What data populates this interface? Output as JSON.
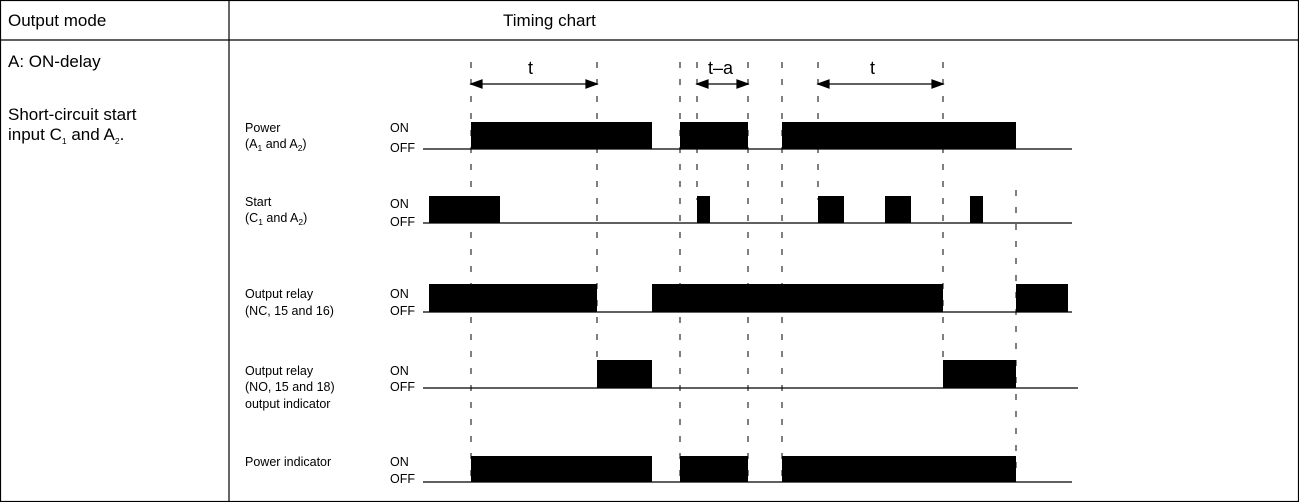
{
  "header": {
    "col1": "Output mode",
    "col2": "Timing chart"
  },
  "mode": {
    "name": "A:  ON-delay",
    "desc_line1": "Short-circuit start",
    "desc_line2_a": "input C",
    "desc_line2_sub1": "1",
    "desc_line2_b": " and A",
    "desc_line2_sub2": "2",
    "desc_line2_c": "."
  },
  "timing_labels": [
    "t",
    "t–a",
    "t"
  ],
  "signals": [
    {
      "id": "power",
      "line1": "Power",
      "line2_a": "(A",
      "line2_sub1": "1",
      "line2_b": " and A",
      "line2_sub2": "2",
      "line2_c": ")",
      "on": "ON",
      "off": "OFF"
    },
    {
      "id": "start",
      "line1": "Start",
      "line2_a": "(C",
      "line2_sub1": "1",
      "line2_b": " and A",
      "line2_sub2": "2",
      "line2_c": ")",
      "on": "ON",
      "off": "OFF"
    },
    {
      "id": "relay-nc",
      "line1": "Output relay",
      "line2": "(NC, 15 and 16)",
      "on": "ON",
      "off": "OFF"
    },
    {
      "id": "relay-no",
      "line1": "Output relay",
      "line2": "(NO, 15 and 18)",
      "line3": "output indicator",
      "on": "ON",
      "off": "OFF"
    },
    {
      "id": "power-indicator",
      "line1": "Power indicator",
      "on": "ON",
      "off": "OFF"
    }
  ]
}
